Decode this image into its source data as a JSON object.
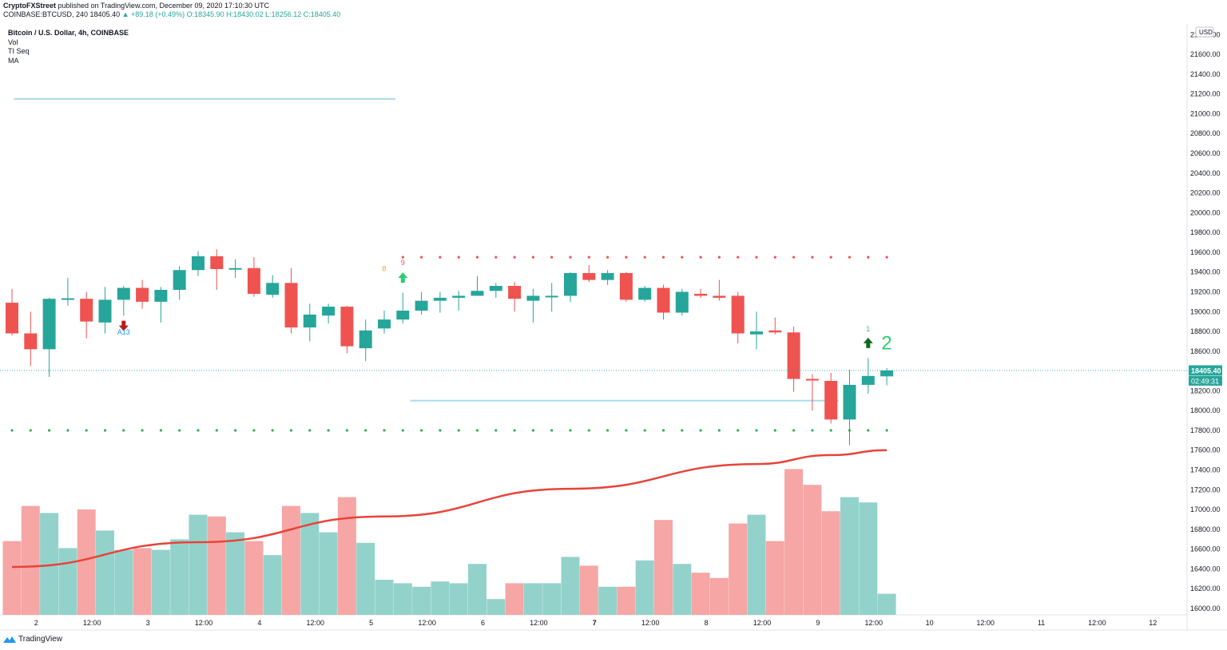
{
  "header": {
    "publisher": "CryptoFXStreet",
    "published_text": "published on TradingView.com, December 09, 2020 17:10:30 UTC",
    "symbol": "COINBASE:BTCUSD, 240",
    "last": "18405.40",
    "change": "▲ +89.18 (+0.49%)",
    "ohlc": "O:18345.90 H:18430.02 L:18256.12 C:18405.40"
  },
  "legend": {
    "title": "Bitcoin / U.S. Dollar, 4h, COINBASE",
    "items": [
      "Vol",
      "TI Seq",
      "MA"
    ]
  },
  "footer": {
    "brand": "TradingView"
  },
  "colors": {
    "up": "#26a69a",
    "down": "#ef5350",
    "vol_up": "#93d2cb",
    "vol_down": "#f5a6a5",
    "ma": "#e8433a",
    "level_line": "#a8dbe8",
    "dot_red": "#ef5350",
    "dot_green": "#2ab34a",
    "arrow_up": "#0f6a1e",
    "arrow_down": "#b71c1c",
    "bright_green": "#2ecc71"
  },
  "chart_data": {
    "type": "candlestick",
    "title": "Bitcoin / U.S. Dollar, 4h, COINBASE",
    "currency": "USD",
    "ylim": [
      15950,
      22150
    ],
    "y_ticks": [
      16000,
      16200,
      16400,
      16600,
      16800,
      17000,
      17200,
      17400,
      17600,
      17800,
      18000,
      18200,
      18400,
      18600,
      18800,
      19000,
      19200,
      19400,
      19600,
      19800,
      20000,
      20200,
      20400,
      20600,
      20800,
      21000,
      21200,
      21400,
      21600,
      21800
    ],
    "y_tick_labels": [
      "16000.00",
      "16200.00",
      "16400.00",
      "16600.00",
      "16800.00",
      "17000.00",
      "17200.00",
      "17400.00",
      "17600.00",
      "17800.00",
      "18000.00",
      "18200.00",
      "18400.00",
      "18600.00",
      "18800.00",
      "19000.00",
      "19200.00",
      "19400.00",
      "19600.00",
      "19800.00",
      "20000.00",
      "20200.00",
      "20400.00",
      "20600.00",
      "20800.00",
      "21000.00",
      "21200.00",
      "21400.00",
      "21600.00",
      "21800.00"
    ],
    "x_ticks": [
      {
        "bar": 1.3,
        "label": "2",
        "bold": false
      },
      {
        "bar": 4.3,
        "label": "12:00",
        "bold": false
      },
      {
        "bar": 7.3,
        "label": "3",
        "bold": false
      },
      {
        "bar": 10.3,
        "label": "12:00",
        "bold": false
      },
      {
        "bar": 13.3,
        "label": "4",
        "bold": false
      },
      {
        "bar": 16.3,
        "label": "12:00",
        "bold": false
      },
      {
        "bar": 19.3,
        "label": "5",
        "bold": false
      },
      {
        "bar": 22.3,
        "label": "12:00",
        "bold": false
      },
      {
        "bar": 25.3,
        "label": "6",
        "bold": false
      },
      {
        "bar": 28.3,
        "label": "12:00",
        "bold": false
      },
      {
        "bar": 31.3,
        "label": "7",
        "bold": true
      },
      {
        "bar": 34.3,
        "label": "12:00",
        "bold": false
      },
      {
        "bar": 37.3,
        "label": "8",
        "bold": false
      },
      {
        "bar": 40.3,
        "label": "12:00",
        "bold": false
      },
      {
        "bar": 43.3,
        "label": "9",
        "bold": false
      },
      {
        "bar": 46.3,
        "label": "12:00",
        "bold": false
      },
      {
        "bar": 49.3,
        "label": "10",
        "bold": false
      },
      {
        "bar": 52.3,
        "label": "12:00",
        "bold": false
      },
      {
        "bar": 55.3,
        "label": "11",
        "bold": false
      },
      {
        "bar": 58.3,
        "label": "12:00",
        "bold": false
      },
      {
        "bar": 61.3,
        "label": "12",
        "bold": false
      }
    ],
    "candles": [
      {
        "o": 19090,
        "h": 19230,
        "l": 18760,
        "c": 18780,
        "v": 0.42
      },
      {
        "o": 18780,
        "h": 19000,
        "l": 18450,
        "c": 18620,
        "v": 0.62
      },
      {
        "o": 18620,
        "h": 19140,
        "l": 18340,
        "c": 19130,
        "v": 0.58
      },
      {
        "o": 19130,
        "h": 19340,
        "l": 19060,
        "c": 19135,
        "v": 0.38
      },
      {
        "o": 19130,
        "h": 19200,
        "l": 18730,
        "c": 18900,
        "v": 0.6
      },
      {
        "o": 18890,
        "h": 19250,
        "l": 18780,
        "c": 19120,
        "v": 0.48
      },
      {
        "o": 19120,
        "h": 19260,
        "l": 18960,
        "c": 19240,
        "v": 0.37
      },
      {
        "o": 19240,
        "h": 19320,
        "l": 19030,
        "c": 19100,
        "v": 0.38
      },
      {
        "o": 19100,
        "h": 19250,
        "l": 18890,
        "c": 19220,
        "v": 0.37
      },
      {
        "o": 19220,
        "h": 19460,
        "l": 19120,
        "c": 19420,
        "v": 0.43
      },
      {
        "o": 19420,
        "h": 19610,
        "l": 19360,
        "c": 19560,
        "v": 0.57
      },
      {
        "o": 19560,
        "h": 19630,
        "l": 19220,
        "c": 19430,
        "v": 0.56
      },
      {
        "o": 19440,
        "h": 19530,
        "l": 19340,
        "c": 19440,
        "v": 0.47
      },
      {
        "o": 19440,
        "h": 19550,
        "l": 19150,
        "c": 19180,
        "v": 0.42
      },
      {
        "o": 19170,
        "h": 19370,
        "l": 19140,
        "c": 19290,
        "v": 0.34
      },
      {
        "o": 19290,
        "h": 19440,
        "l": 18780,
        "c": 18840,
        "v": 0.62
      },
      {
        "o": 18840,
        "h": 19080,
        "l": 18700,
        "c": 18970,
        "v": 0.58
      },
      {
        "o": 18960,
        "h": 19080,
        "l": 18880,
        "c": 19050,
        "v": 0.47
      },
      {
        "o": 19050,
        "h": 19060,
        "l": 18580,
        "c": 18650,
        "v": 0.67
      },
      {
        "o": 18630,
        "h": 18920,
        "l": 18500,
        "c": 18810,
        "v": 0.41
      },
      {
        "o": 18830,
        "h": 19010,
        "l": 18780,
        "c": 18920,
        "v": 0.2
      },
      {
        "o": 18920,
        "h": 19190,
        "l": 18880,
        "c": 19010,
        "v": 0.18
      },
      {
        "o": 19010,
        "h": 19200,
        "l": 18970,
        "c": 19110,
        "v": 0.16
      },
      {
        "o": 19110,
        "h": 19200,
        "l": 18990,
        "c": 19140,
        "v": 0.19
      },
      {
        "o": 19140,
        "h": 19210,
        "l": 19010,
        "c": 19160,
        "v": 0.18
      },
      {
        "o": 19160,
        "h": 19360,
        "l": 19160,
        "c": 19210,
        "v": 0.29
      },
      {
        "o": 19210,
        "h": 19290,
        "l": 19140,
        "c": 19260,
        "v": 0.09
      },
      {
        "o": 19260,
        "h": 19300,
        "l": 19000,
        "c": 19130,
        "v": 0.18
      },
      {
        "o": 19110,
        "h": 19230,
        "l": 18890,
        "c": 19160,
        "v": 0.18
      },
      {
        "o": 19150,
        "h": 19290,
        "l": 19000,
        "c": 19160,
        "v": 0.18
      },
      {
        "o": 19160,
        "h": 19400,
        "l": 19100,
        "c": 19390,
        "v": 0.33
      },
      {
        "o": 19390,
        "h": 19470,
        "l": 19300,
        "c": 19320,
        "v": 0.28
      },
      {
        "o": 19320,
        "h": 19420,
        "l": 19270,
        "c": 19390,
        "v": 0.16
      },
      {
        "o": 19390,
        "h": 19400,
        "l": 19100,
        "c": 19120,
        "v": 0.16
      },
      {
        "o": 19120,
        "h": 19260,
        "l": 19100,
        "c": 19240,
        "v": 0.31
      },
      {
        "o": 19240,
        "h": 19270,
        "l": 18920,
        "c": 18990,
        "v": 0.54
      },
      {
        "o": 18990,
        "h": 19230,
        "l": 18960,
        "c": 19200,
        "v": 0.29
      },
      {
        "o": 19180,
        "h": 19230,
        "l": 19140,
        "c": 19160,
        "v": 0.24
      },
      {
        "o": 19160,
        "h": 19320,
        "l": 19110,
        "c": 19140,
        "v": 0.21
      },
      {
        "o": 19160,
        "h": 19200,
        "l": 18680,
        "c": 18780,
        "v": 0.52
      },
      {
        "o": 18770,
        "h": 19000,
        "l": 18620,
        "c": 18800,
        "v": 0.57
      },
      {
        "o": 18810,
        "h": 18940,
        "l": 18770,
        "c": 18790,
        "v": 0.42
      },
      {
        "o": 18790,
        "h": 18850,
        "l": 18190,
        "c": 18320,
        "v": 0.83
      },
      {
        "o": 18320,
        "h": 18370,
        "l": 18000,
        "c": 18310,
        "v": 0.74
      },
      {
        "o": 18300,
        "h": 18380,
        "l": 17870,
        "c": 17910,
        "v": 0.59
      },
      {
        "o": 17910,
        "h": 18410,
        "l": 17650,
        "c": 18260,
        "v": 0.67
      },
      {
        "o": 18260,
        "h": 18530,
        "l": 18170,
        "c": 18350,
        "v": 0.64
      },
      {
        "o": 18345.9,
        "h": 18430.02,
        "l": 18256.12,
        "c": 18405.4,
        "v": 0.12
      }
    ],
    "ma": [
      {
        "bar": 0,
        "y": 16420
      },
      {
        "bar": 10,
        "y": 16670
      },
      {
        "bar": 20,
        "y": 16930
      },
      {
        "bar": 30,
        "y": 17210
      },
      {
        "bar": 40,
        "y": 17460
      },
      {
        "bar": 44,
        "y": 17550
      },
      {
        "bar": 47,
        "y": 17600
      }
    ],
    "level_lines": [
      {
        "price": 21150,
        "x0": 0.1,
        "x1": 20.6
      },
      {
        "price": 18100,
        "x0": 21.4,
        "x1": 44.4
      }
    ],
    "red_dots": {
      "price": 19550,
      "from": 21,
      "to": 47
    },
    "green_dots": {
      "price": 17800,
      "from": 0,
      "to": 47
    },
    "annotations": [
      {
        "kind": "down-arrow",
        "bar": 6,
        "price": 18860
      },
      {
        "kind": "text",
        "text": "A13",
        "bar": 6,
        "price": 18770,
        "color": "#2196f3"
      },
      {
        "kind": "text",
        "text": "8",
        "bar": 20,
        "price": 19410,
        "color": "#f5a623"
      },
      {
        "kind": "text",
        "text": "9",
        "bar": 21,
        "price": 19470,
        "color": "#ef5350"
      },
      {
        "kind": "up-arrow",
        "bar": 21,
        "price": 19340,
        "color": "#2ecc71"
      },
      {
        "kind": "text",
        "text": "1",
        "bar": 46,
        "price": 18800,
        "color": "#2ecc71"
      },
      {
        "kind": "up-arrow",
        "bar": 46,
        "price": 18680,
        "color": "#0f6a1e"
      },
      {
        "kind": "big-text",
        "text": "2",
        "bar": 47,
        "price": 18620,
        "color": "#2ecc71"
      }
    ],
    "last_price": {
      "price": 18405.4,
      "label": "18405.40",
      "countdown": "02:49:31"
    }
  }
}
